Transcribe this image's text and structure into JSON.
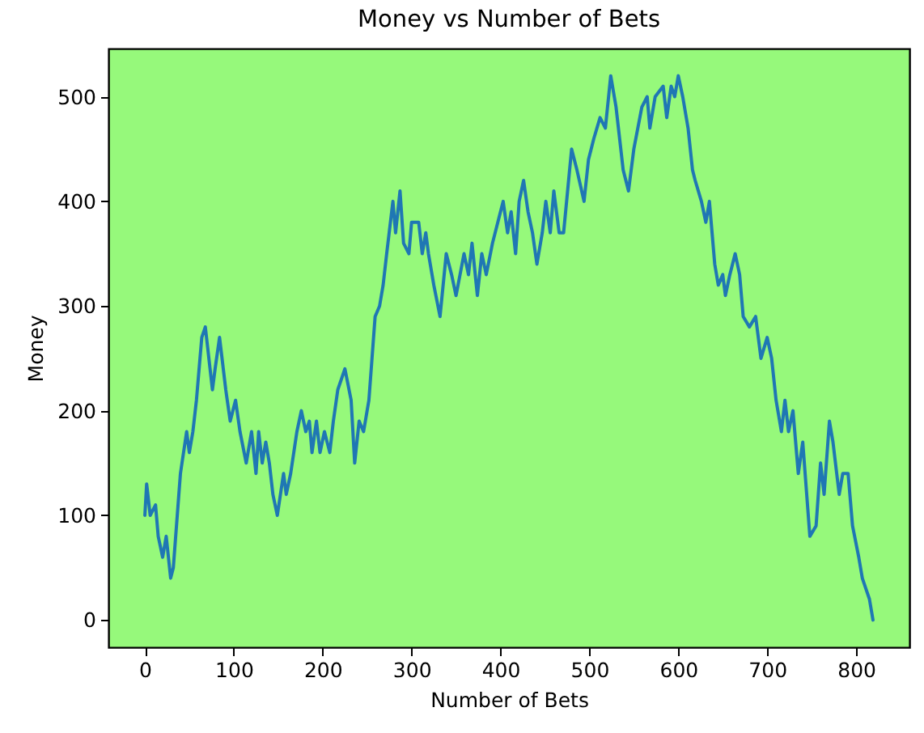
{
  "chart_data": {
    "type": "line",
    "title": "Money vs Number of Bets",
    "xlabel": "Number of Bets",
    "ylabel": "Money",
    "x": [
      0,
      2,
      6,
      12,
      15,
      20,
      24,
      29,
      32,
      40,
      47,
      50,
      54,
      58,
      64,
      68,
      76,
      79,
      84,
      91,
      96,
      102,
      107,
      114,
      120,
      125,
      128,
      132,
      136,
      140,
      144,
      149,
      156,
      159,
      164,
      171,
      176,
      181,
      185,
      188,
      193,
      197,
      202,
      208,
      212,
      217,
      225,
      232,
      236,
      241,
      246,
      252,
      259,
      264,
      268,
      272,
      279,
      282,
      287,
      291,
      297,
      300,
      308,
      312,
      316,
      319,
      325,
      332,
      339,
      345,
      350,
      359,
      364,
      368,
      374,
      379,
      384,
      391,
      397,
      403,
      408,
      412,
      417,
      421,
      426,
      431,
      436,
      441,
      447,
      451,
      456,
      460,
      466,
      471,
      480,
      486,
      494,
      499,
      505,
      512,
      518,
      524,
      530,
      538,
      544,
      550,
      559,
      565,
      568,
      574,
      583,
      587,
      592,
      596,
      600,
      605,
      611,
      616,
      619,
      626,
      631,
      635,
      641,
      645,
      650,
      653,
      658,
      664,
      669,
      673,
      680,
      687,
      693,
      700,
      705,
      710,
      716,
      720,
      724,
      729,
      735,
      740,
      748,
      755,
      760,
      764,
      770,
      774,
      781,
      785,
      791,
      796,
      803,
      807,
      811,
      815,
      819
    ],
    "series": [
      {
        "color": "#1f77b4",
        "values": [
          100,
          130,
          100,
          110,
          80,
          60,
          80,
          40,
          50,
          140,
          180,
          160,
          180,
          210,
          270,
          280,
          220,
          240,
          270,
          220,
          190,
          210,
          180,
          150,
          180,
          140,
          180,
          150,
          170,
          150,
          120,
          100,
          140,
          120,
          140,
          180,
          200,
          180,
          190,
          160,
          190,
          160,
          180,
          160,
          190,
          220,
          240,
          210,
          150,
          190,
          180,
          210,
          290,
          300,
          320,
          350,
          400,
          370,
          410,
          360,
          350,
          380,
          380,
          350,
          370,
          350,
          320,
          290,
          350,
          330,
          310,
          350,
          330,
          360,
          310,
          350,
          330,
          360,
          380,
          400,
          370,
          390,
          350,
          400,
          420,
          390,
          370,
          340,
          370,
          400,
          370,
          410,
          370,
          370,
          450,
          430,
          400,
          440,
          460,
          480,
          470,
          520,
          490,
          430,
          410,
          450,
          490,
          500,
          470,
          500,
          510,
          480,
          510,
          500,
          520,
          500,
          470,
          430,
          420,
          400,
          380,
          400,
          340,
          320,
          330,
          310,
          330,
          350,
          330,
          290,
          280,
          290,
          250,
          270,
          250,
          210,
          180,
          210,
          180,
          200,
          140,
          170,
          80,
          90,
          150,
          120,
          190,
          170,
          120,
          140,
          140,
          90,
          60,
          40,
          30,
          20,
          0
        ]
      }
    ],
    "xlim": [
      -41,
      860
    ],
    "ylim": [
      -26,
      546
    ],
    "xticks": [
      0,
      100,
      200,
      300,
      400,
      500,
      600,
      700,
      800
    ],
    "yticks": [
      0,
      100,
      200,
      300,
      400,
      500
    ],
    "grid": false
  }
}
